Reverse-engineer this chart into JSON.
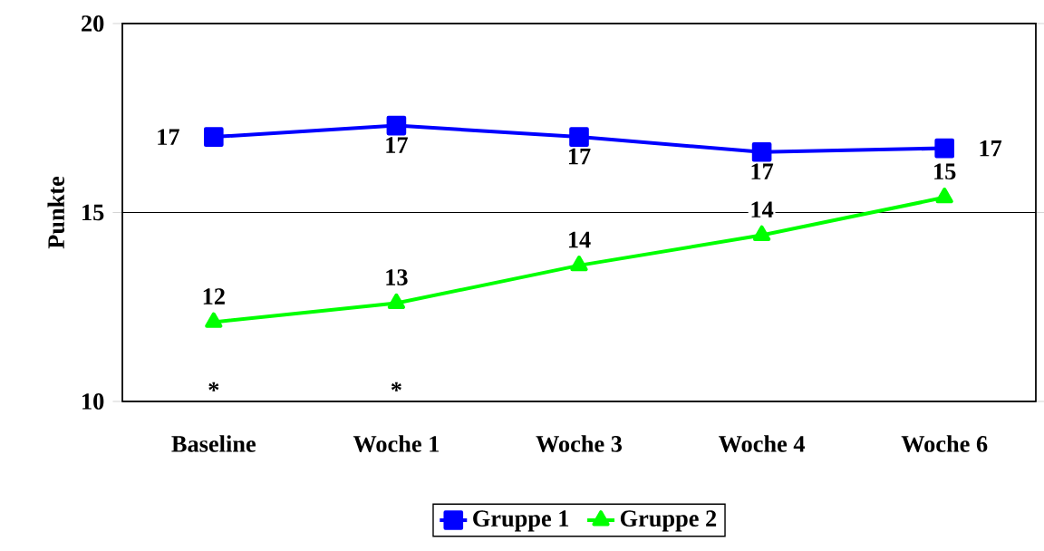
{
  "chart_data": {
    "type": "line",
    "ylabel": "Punkte",
    "categories": [
      "Baseline",
      "Woche 1",
      "Woche 3",
      "Woche 4",
      "Woche 6"
    ],
    "series": [
      {
        "name": "Gruppe 1",
        "color": "#0000ff",
        "marker": "square",
        "values": [
          17.0,
          17.3,
          17.0,
          16.6,
          16.7
        ],
        "value_labels": [
          "17",
          "17",
          "17",
          "17",
          "17"
        ]
      },
      {
        "name": "Gruppe 2",
        "color": "#00ff00",
        "marker": "triangle",
        "values": [
          12.1,
          12.6,
          13.6,
          14.4,
          15.4
        ],
        "value_labels": [
          "12",
          "13",
          "14",
          "14",
          "15"
        ]
      }
    ],
    "ylim": [
      10,
      20
    ],
    "yticks": [
      10,
      15,
      20
    ],
    "grid": "y",
    "legend": "bottom",
    "annotations": [
      "*",
      "*"
    ]
  }
}
